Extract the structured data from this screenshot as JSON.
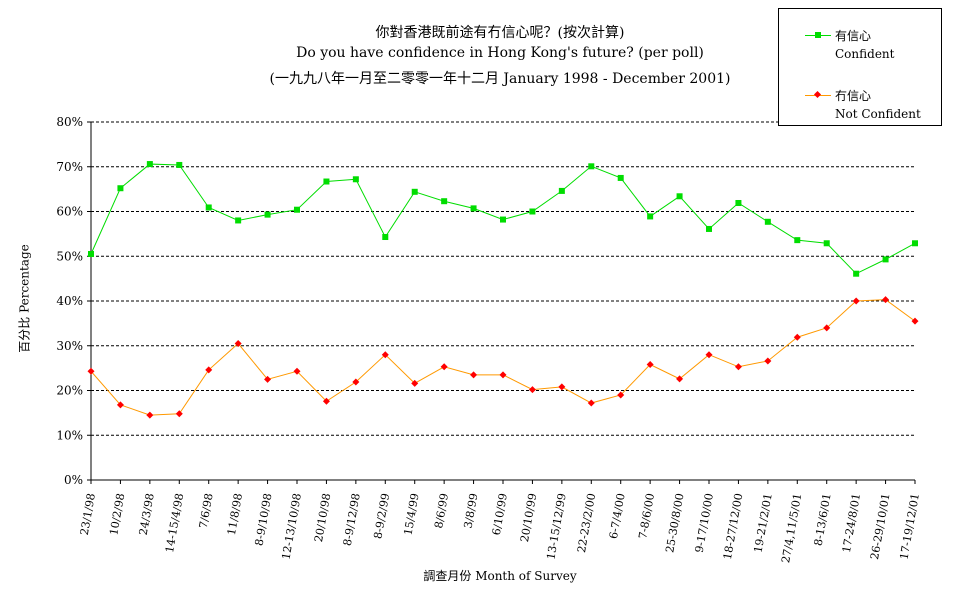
{
  "chart_data": {
    "type": "line",
    "title_lines": [
      "你對香港既前途有冇信心呢？(按次計算)",
      "Do you have confidence in Hong Kong's future? (per poll)",
      "(一九九八年一月至二零零一年十二月 January 1998 - December 2001)"
    ],
    "xlabel": "調查月份 Month of Survey",
    "ylabel": "百分比 Percentage",
    "ylim": [
      0,
      80
    ],
    "yticks": [
      "0%",
      "10%",
      "20%",
      "30%",
      "40%",
      "50%",
      "60%",
      "70%",
      "80%"
    ],
    "grid": "horizontal dashed",
    "legend_position": "top-right",
    "categories": [
      "23/1/98",
      "10/2/98",
      "24/3/98",
      "14-15/4/98",
      "7/6/98",
      "11/8/98",
      "8-9/10/98",
      "12-13/10/98",
      "20/10/98",
      "8-9/12/98",
      "8-9/2/99",
      "15/4/99",
      "8/6/99",
      "3/8/99",
      "6/10/99",
      "20/10/99",
      "13-15/12/99",
      "22-23/2/00",
      "6-7/4/00",
      "7-8/6/00",
      "25-30/8/00",
      "9-17/10/00",
      "18-27/12/00",
      "19-21/2/01",
      "27/4,11/5/01",
      "8-13/6/01",
      "17-24/8/01",
      "26-29/10/01",
      "17-19/12/01"
    ],
    "series": [
      {
        "name": "有信心",
        "name_en": "Confident",
        "color": "#00dd00",
        "marker": "square",
        "values": [
          50.5,
          65.2,
          70.6,
          70.4,
          60.9,
          58.0,
          59.3,
          60.4,
          66.7,
          67.2,
          54.3,
          64.4,
          62.3,
          60.7,
          58.2,
          60.0,
          64.6,
          70.1,
          67.5,
          58.9,
          63.4,
          56.1,
          61.9,
          57.7,
          53.6,
          52.9,
          46.1,
          49.3,
          52.9
        ]
      },
      {
        "name": "冇信心",
        "name_en": "Not Confident",
        "color": "#ff9900",
        "marker_color": "#ff0000",
        "marker": "diamond",
        "values": [
          24.3,
          16.8,
          14.5,
          14.8,
          24.6,
          30.5,
          22.5,
          24.3,
          17.6,
          21.9,
          28.0,
          21.6,
          25.3,
          23.5,
          23.5,
          20.2,
          20.8,
          17.2,
          19.0,
          25.8,
          22.6,
          28.0,
          25.3,
          26.6,
          31.9,
          34.0,
          40.0,
          40.3,
          35.5
        ]
      }
    ]
  }
}
